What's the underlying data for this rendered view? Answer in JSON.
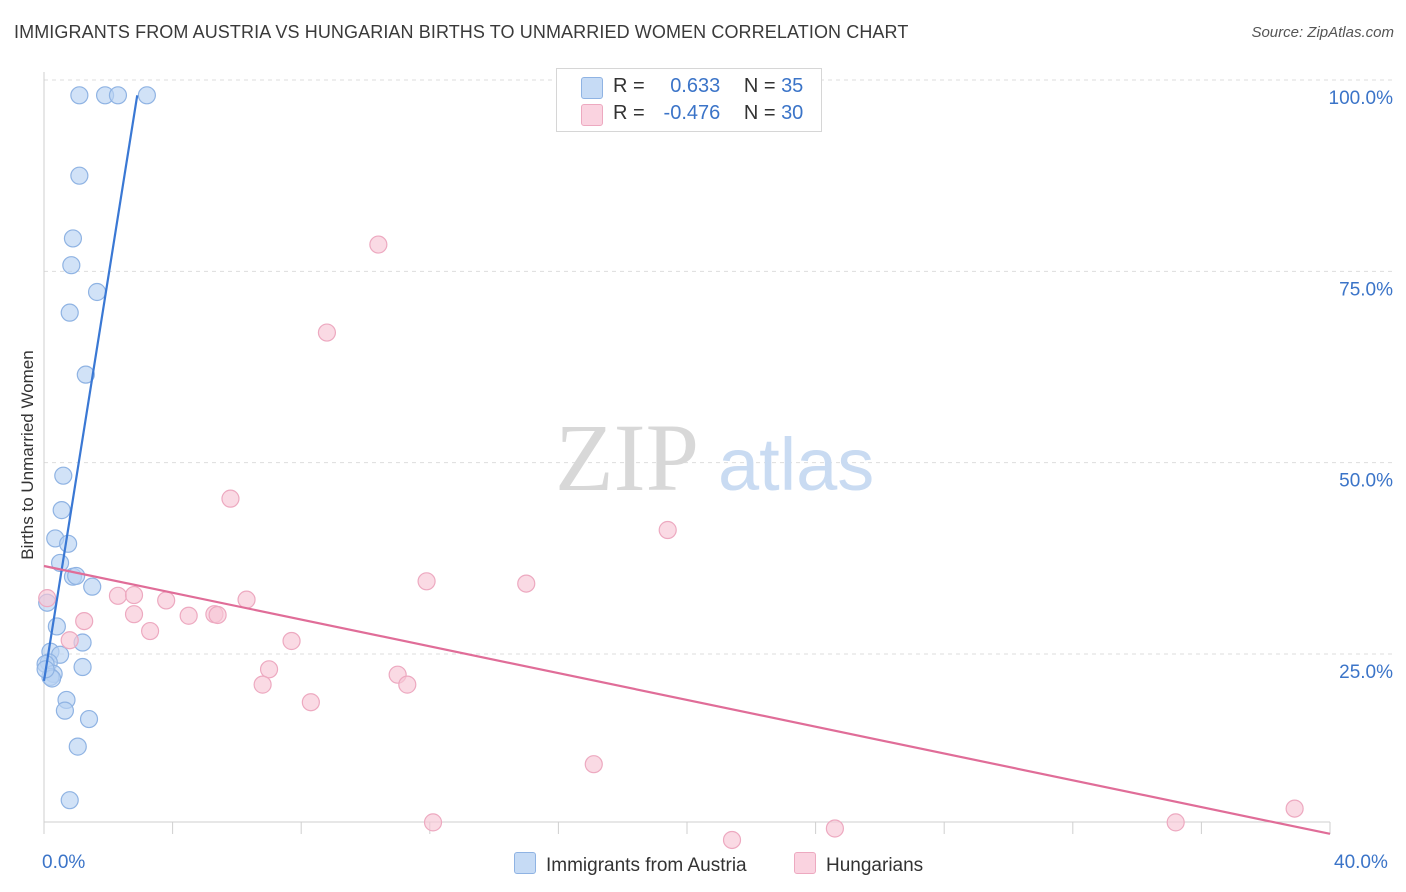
{
  "title": "IMMIGRANTS FROM AUSTRIA VS HUNGARIAN BIRTHS TO UNMARRIED WOMEN CORRELATION CHART",
  "source": "Source: ZipAtlas.com",
  "watermark": {
    "zip": "ZIP",
    "atlas": "atlas"
  },
  "colors": {
    "blue_fill": "#b9d2f2",
    "blue_stroke": "#8fb3e3",
    "blue_line": "#3a78d4",
    "pink_fill": "#f7c6d6",
    "pink_stroke": "#eda9c0",
    "pink_line": "#e06d98",
    "tick_label": "#3b74c8",
    "grid": "#dddddd"
  },
  "legend": {
    "rows": [
      {
        "r_label": "R =",
        "r_value": "0.633",
        "n_label": "N =",
        "n_value": "35"
      },
      {
        "r_label": "R =",
        "r_value": "-0.476",
        "n_label": "N =",
        "n_value": "30"
      }
    ]
  },
  "bottom_legend": {
    "series1": "Immigrants from Austria",
    "series2": "Hungarians"
  },
  "x_tick_labels": {
    "left": "0.0%",
    "right": "40.0%"
  },
  "chart_data": {
    "type": "scatter",
    "title": "IMMIGRANTS FROM AUSTRIA VS HUNGARIAN BIRTHS TO UNMARRIED WOMEN CORRELATION CHART",
    "xlabel": "",
    "ylabel": "Births to Unmarried Women",
    "xlim": [
      0,
      40
    ],
    "ylim": [
      0,
      102
    ],
    "y_ticks": [
      {
        "value": 25,
        "label": "25.0%"
      },
      {
        "value": 50,
        "label": "50.0%"
      },
      {
        "value": 75,
        "label": "75.0%"
      },
      {
        "value": 100,
        "label": "100.0%"
      }
    ],
    "series": [
      {
        "name": "Immigrants from Austria",
        "color": "#b9d2f2",
        "points": [
          {
            "x": 1.1,
            "y": 98
          },
          {
            "x": 1.9,
            "y": 98
          },
          {
            "x": 2.3,
            "y": 98
          },
          {
            "x": 3.2,
            "y": 98
          },
          {
            "x": 1.1,
            "y": 87.5
          },
          {
            "x": 0.9,
            "y": 79.3
          },
          {
            "x": 0.85,
            "y": 75.8
          },
          {
            "x": 1.65,
            "y": 72.3
          },
          {
            "x": 0.8,
            "y": 69.6
          },
          {
            "x": 1.3,
            "y": 61.5
          },
          {
            "x": 0.6,
            "y": 48.3
          },
          {
            "x": 0.55,
            "y": 43.8
          },
          {
            "x": 0.35,
            "y": 40.1
          },
          {
            "x": 0.75,
            "y": 39.4
          },
          {
            "x": 0.5,
            "y": 36.9
          },
          {
            "x": 0.9,
            "y": 35.1
          },
          {
            "x": 1.0,
            "y": 35.2
          },
          {
            "x": 1.5,
            "y": 33.8
          },
          {
            "x": 0.1,
            "y": 31.7
          },
          {
            "x": 0.4,
            "y": 28.6
          },
          {
            "x": 1.2,
            "y": 26.5
          },
          {
            "x": 0.2,
            "y": 25.3
          },
          {
            "x": 0.5,
            "y": 24.9
          },
          {
            "x": 0.15,
            "y": 23.9
          },
          {
            "x": 0.05,
            "y": 23.7
          },
          {
            "x": 1.2,
            "y": 23.3
          },
          {
            "x": 0.3,
            "y": 22.4
          },
          {
            "x": 0.2,
            "y": 22.0
          },
          {
            "x": 0.25,
            "y": 21.8
          },
          {
            "x": 0.7,
            "y": 19.0
          },
          {
            "x": 0.65,
            "y": 17.6
          },
          {
            "x": 1.4,
            "y": 16.5
          },
          {
            "x": 1.05,
            "y": 12.9
          },
          {
            "x": 0.8,
            "y": 5.9
          },
          {
            "x": 0.05,
            "y": 23.0
          }
        ]
      },
      {
        "name": "Hungarians",
        "color": "#f7c6d6",
        "points": [
          {
            "x": 10.4,
            "y": 78.5
          },
          {
            "x": 8.8,
            "y": 67.0
          },
          {
            "x": 5.8,
            "y": 45.3
          },
          {
            "x": 19.4,
            "y": 41.2
          },
          {
            "x": 11.9,
            "y": 34.5
          },
          {
            "x": 15.0,
            "y": 34.2
          },
          {
            "x": 2.3,
            "y": 32.6
          },
          {
            "x": 2.8,
            "y": 32.7
          },
          {
            "x": 3.8,
            "y": 32.0
          },
          {
            "x": 6.3,
            "y": 32.1
          },
          {
            "x": 0.1,
            "y": 32.3
          },
          {
            "x": 2.8,
            "y": 30.2
          },
          {
            "x": 4.5,
            "y": 30.0
          },
          {
            "x": 5.3,
            "y": 30.2
          },
          {
            "x": 5.4,
            "y": 30.1
          },
          {
            "x": 1.25,
            "y": 29.3
          },
          {
            "x": 3.3,
            "y": 28.0
          },
          {
            "x": 0.8,
            "y": 26.8
          },
          {
            "x": 7.7,
            "y": 26.7
          },
          {
            "x": 7.0,
            "y": 23.0
          },
          {
            "x": 11.0,
            "y": 22.3
          },
          {
            "x": 11.3,
            "y": 21.0
          },
          {
            "x": 6.8,
            "y": 21.0
          },
          {
            "x": 8.3,
            "y": 18.7
          },
          {
            "x": 17.1,
            "y": 10.6
          },
          {
            "x": 12.1,
            "y": 3.0
          },
          {
            "x": 21.4,
            "y": 0.7
          },
          {
            "x": 24.6,
            "y": 2.2
          },
          {
            "x": 35.2,
            "y": 3.0
          },
          {
            "x": 38.9,
            "y": 4.8
          }
        ]
      }
    ],
    "trendlines": [
      {
        "series": "Immigrants from Austria",
        "from": {
          "x": 0.0,
          "y": 21.5
        },
        "to": {
          "x": 2.9,
          "y": 98.0
        }
      },
      {
        "series": "Hungarians",
        "from": {
          "x": 0.0,
          "y": 36.5
        },
        "to": {
          "x": 40.0,
          "y": 1.5
        }
      }
    ]
  }
}
